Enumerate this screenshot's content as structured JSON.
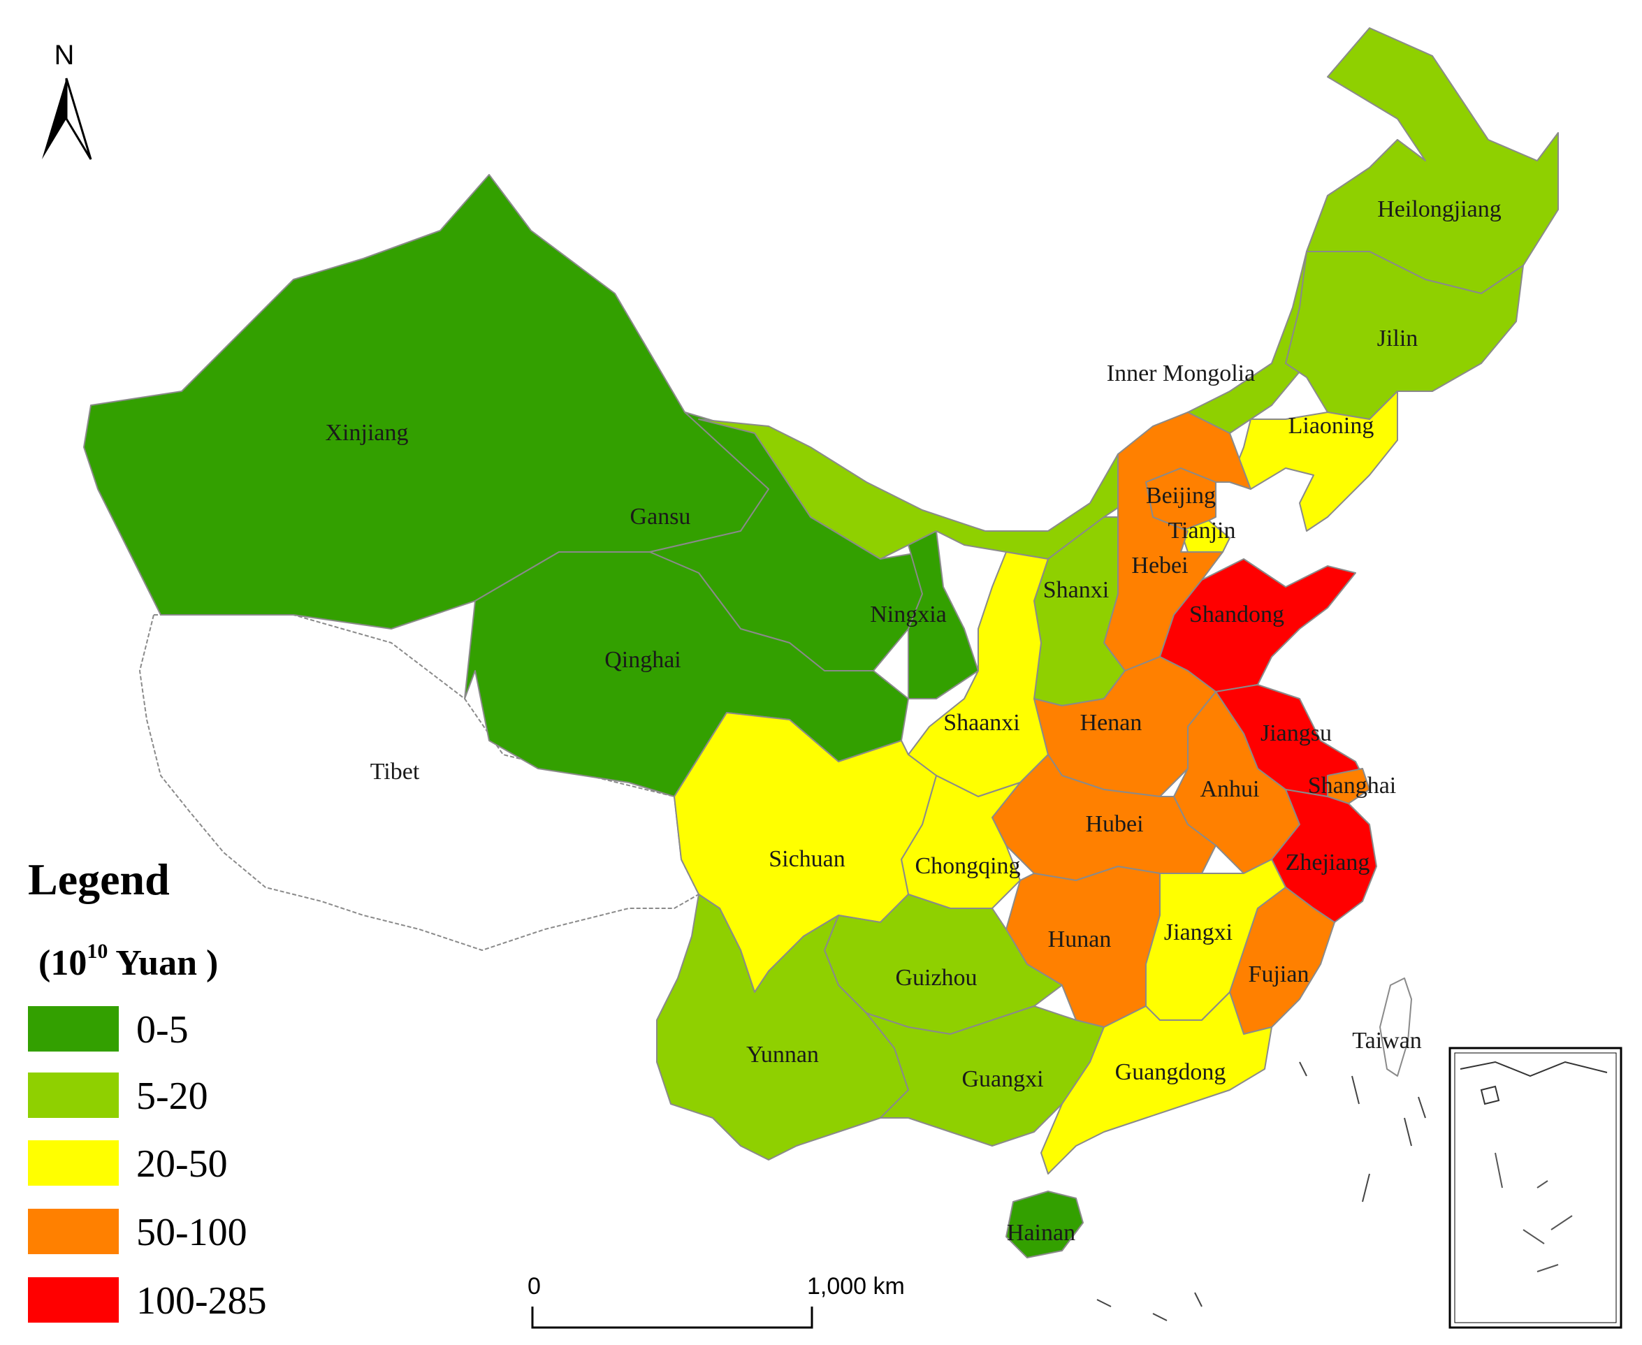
{
  "colors": {
    "c0_5": "#33a000",
    "c5_20": "#8fd000",
    "c20_50": "#ffff00",
    "c50_100": "#ff8000",
    "c100_285": "#ff0000",
    "no_data": "#ffffff"
  },
  "north": {
    "label": "N"
  },
  "legend": {
    "title": "Legend",
    "unit_open": "(10",
    "unit_sup": "10",
    "unit_close": " Yuan )",
    "items": [
      {
        "label": "0-5",
        "color": "#33a000"
      },
      {
        "label": "5-20",
        "color": "#8fd000"
      },
      {
        "label": "20-50",
        "color": "#ffff00"
      },
      {
        "label": "50-100",
        "color": "#ff8000"
      },
      {
        "label": "100-285",
        "color": "#ff0000"
      }
    ]
  },
  "scale_bar": {
    "start_label": "0",
    "end_label": "1,000 km"
  },
  "provinces": [
    {
      "name": "Xinjiang",
      "class": "0-5"
    },
    {
      "name": "Gansu",
      "class": "0-5"
    },
    {
      "name": "Qinghai",
      "class": "0-5"
    },
    {
      "name": "Ningxia",
      "class": "0-5"
    },
    {
      "name": "Hainan",
      "class": "0-5"
    },
    {
      "name": "Tibet",
      "class": "none"
    },
    {
      "name": "Heilongjiang",
      "class": "5-20"
    },
    {
      "name": "Jilin",
      "class": "5-20"
    },
    {
      "name": "Inner Mongolia",
      "class": "5-20"
    },
    {
      "name": "Shanxi",
      "class": "5-20"
    },
    {
      "name": "Guizhou",
      "class": "5-20"
    },
    {
      "name": "Yunnan",
      "class": "5-20"
    },
    {
      "name": "Guangxi",
      "class": "5-20"
    },
    {
      "name": "Liaoning",
      "class": "20-50"
    },
    {
      "name": "Tianjin",
      "class": "20-50"
    },
    {
      "name": "Shaanxi",
      "class": "20-50"
    },
    {
      "name": "Sichuan",
      "class": "20-50"
    },
    {
      "name": "Chongqing",
      "class": "20-50"
    },
    {
      "name": "Jiangxi",
      "class": "20-50"
    },
    {
      "name": "Guangdong",
      "class": "20-50"
    },
    {
      "name": "Beijing",
      "class": "50-100"
    },
    {
      "name": "Hebei",
      "class": "50-100"
    },
    {
      "name": "Henan",
      "class": "50-100"
    },
    {
      "name": "Anhui",
      "class": "50-100"
    },
    {
      "name": "Hubei",
      "class": "50-100"
    },
    {
      "name": "Hunan",
      "class": "50-100"
    },
    {
      "name": "Fujian",
      "class": "50-100"
    },
    {
      "name": "Shanghai",
      "class": "50-100"
    },
    {
      "name": "Shandong",
      "class": "100-285"
    },
    {
      "name": "Jiangsu",
      "class": "100-285"
    },
    {
      "name": "Zhejiang",
      "class": "100-285"
    },
    {
      "name": "Taiwan",
      "class": "none"
    }
  ]
}
